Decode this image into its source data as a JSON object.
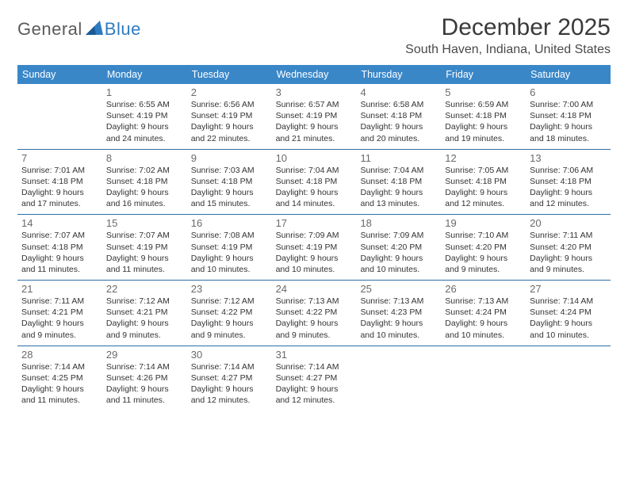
{
  "logo": {
    "text1": "General",
    "text2": "Blue"
  },
  "title": "December 2025",
  "location": "South Haven, Indiana, United States",
  "colors": {
    "header_bg": "#3a87c8",
    "header_text": "#ffffff",
    "rule": "#2d6fa6",
    "logo_gray": "#5a5a5a",
    "logo_blue": "#2f7bbf",
    "day_num": "#6a6a6a",
    "body_text": "#333333"
  },
  "weekdays": [
    "Sunday",
    "Monday",
    "Tuesday",
    "Wednesday",
    "Thursday",
    "Friday",
    "Saturday"
  ],
  "weeks": [
    [
      null,
      {
        "n": "1",
        "sunrise": "6:55 AM",
        "sunset": "4:19 PM",
        "daylight": "9 hours and 24 minutes."
      },
      {
        "n": "2",
        "sunrise": "6:56 AM",
        "sunset": "4:19 PM",
        "daylight": "9 hours and 22 minutes."
      },
      {
        "n": "3",
        "sunrise": "6:57 AM",
        "sunset": "4:19 PM",
        "daylight": "9 hours and 21 minutes."
      },
      {
        "n": "4",
        "sunrise": "6:58 AM",
        "sunset": "4:18 PM",
        "daylight": "9 hours and 20 minutes."
      },
      {
        "n": "5",
        "sunrise": "6:59 AM",
        "sunset": "4:18 PM",
        "daylight": "9 hours and 19 minutes."
      },
      {
        "n": "6",
        "sunrise": "7:00 AM",
        "sunset": "4:18 PM",
        "daylight": "9 hours and 18 minutes."
      }
    ],
    [
      {
        "n": "7",
        "sunrise": "7:01 AM",
        "sunset": "4:18 PM",
        "daylight": "9 hours and 17 minutes."
      },
      {
        "n": "8",
        "sunrise": "7:02 AM",
        "sunset": "4:18 PM",
        "daylight": "9 hours and 16 minutes."
      },
      {
        "n": "9",
        "sunrise": "7:03 AM",
        "sunset": "4:18 PM",
        "daylight": "9 hours and 15 minutes."
      },
      {
        "n": "10",
        "sunrise": "7:04 AM",
        "sunset": "4:18 PM",
        "daylight": "9 hours and 14 minutes."
      },
      {
        "n": "11",
        "sunrise": "7:04 AM",
        "sunset": "4:18 PM",
        "daylight": "9 hours and 13 minutes."
      },
      {
        "n": "12",
        "sunrise": "7:05 AM",
        "sunset": "4:18 PM",
        "daylight": "9 hours and 12 minutes."
      },
      {
        "n": "13",
        "sunrise": "7:06 AM",
        "sunset": "4:18 PM",
        "daylight": "9 hours and 12 minutes."
      }
    ],
    [
      {
        "n": "14",
        "sunrise": "7:07 AM",
        "sunset": "4:18 PM",
        "daylight": "9 hours and 11 minutes."
      },
      {
        "n": "15",
        "sunrise": "7:07 AM",
        "sunset": "4:19 PM",
        "daylight": "9 hours and 11 minutes."
      },
      {
        "n": "16",
        "sunrise": "7:08 AM",
        "sunset": "4:19 PM",
        "daylight": "9 hours and 10 minutes."
      },
      {
        "n": "17",
        "sunrise": "7:09 AM",
        "sunset": "4:19 PM",
        "daylight": "9 hours and 10 minutes."
      },
      {
        "n": "18",
        "sunrise": "7:09 AM",
        "sunset": "4:20 PM",
        "daylight": "9 hours and 10 minutes."
      },
      {
        "n": "19",
        "sunrise": "7:10 AM",
        "sunset": "4:20 PM",
        "daylight": "9 hours and 9 minutes."
      },
      {
        "n": "20",
        "sunrise": "7:11 AM",
        "sunset": "4:20 PM",
        "daylight": "9 hours and 9 minutes."
      }
    ],
    [
      {
        "n": "21",
        "sunrise": "7:11 AM",
        "sunset": "4:21 PM",
        "daylight": "9 hours and 9 minutes."
      },
      {
        "n": "22",
        "sunrise": "7:12 AM",
        "sunset": "4:21 PM",
        "daylight": "9 hours and 9 minutes."
      },
      {
        "n": "23",
        "sunrise": "7:12 AM",
        "sunset": "4:22 PM",
        "daylight": "9 hours and 9 minutes."
      },
      {
        "n": "24",
        "sunrise": "7:13 AM",
        "sunset": "4:22 PM",
        "daylight": "9 hours and 9 minutes."
      },
      {
        "n": "25",
        "sunrise": "7:13 AM",
        "sunset": "4:23 PM",
        "daylight": "9 hours and 10 minutes."
      },
      {
        "n": "26",
        "sunrise": "7:13 AM",
        "sunset": "4:24 PM",
        "daylight": "9 hours and 10 minutes."
      },
      {
        "n": "27",
        "sunrise": "7:14 AM",
        "sunset": "4:24 PM",
        "daylight": "9 hours and 10 minutes."
      }
    ],
    [
      {
        "n": "28",
        "sunrise": "7:14 AM",
        "sunset": "4:25 PM",
        "daylight": "9 hours and 11 minutes."
      },
      {
        "n": "29",
        "sunrise": "7:14 AM",
        "sunset": "4:26 PM",
        "daylight": "9 hours and 11 minutes."
      },
      {
        "n": "30",
        "sunrise": "7:14 AM",
        "sunset": "4:27 PM",
        "daylight": "9 hours and 12 minutes."
      },
      {
        "n": "31",
        "sunrise": "7:14 AM",
        "sunset": "4:27 PM",
        "daylight": "9 hours and 12 minutes."
      },
      null,
      null,
      null
    ]
  ],
  "labels": {
    "sunrise": "Sunrise: ",
    "sunset": "Sunset: ",
    "daylight": "Daylight: "
  }
}
